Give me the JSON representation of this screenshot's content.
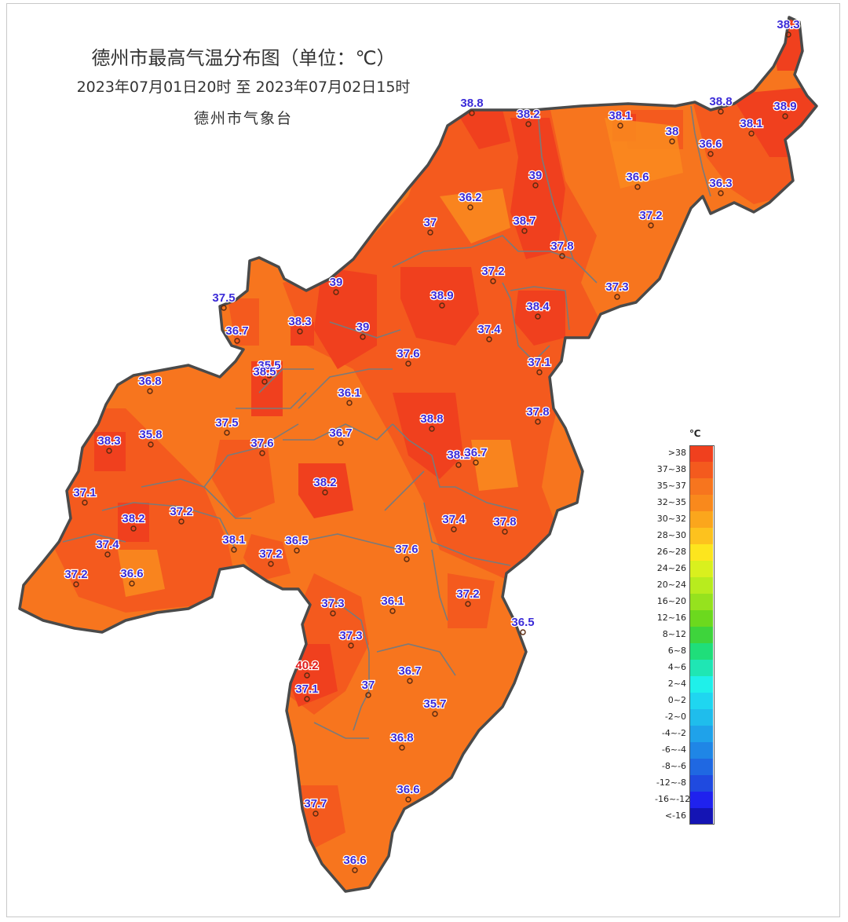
{
  "header": {
    "title": "德州市最高气温分布图（单位：℃）",
    "period": "2023年07月01日20时  至  2023年07月02日15时",
    "agency": "德州市气象台"
  },
  "colors": {
    "gt38": "#f0401e",
    "c37_38": "#f45a1e",
    "c35_37": "#f7751e",
    "border": "#4a4a4a",
    "county_line": "#7a7a7a",
    "station_label": "#3b2bd8",
    "station_label_hot": "#e01818"
  },
  "legend": {
    "unit": "℃",
    "items": [
      {
        "label": ">38",
        "color": "#f0401e"
      },
      {
        "label": "37~38",
        "color": "#f45a1e"
      },
      {
        "label": "35~37",
        "color": "#f7751e"
      },
      {
        "label": "32~35",
        "color": "#f9891c"
      },
      {
        "label": "30~32",
        "color": "#fba61c"
      },
      {
        "label": "28~30",
        "color": "#fdc21e"
      },
      {
        "label": "26~28",
        "color": "#fde51e"
      },
      {
        "label": "24~26",
        "color": "#d9f01e"
      },
      {
        "label": "20~24",
        "color": "#b8ec1e"
      },
      {
        "label": "16~20",
        "color": "#96e21e"
      },
      {
        "label": "12~16",
        "color": "#6cd91e"
      },
      {
        "label": "8~12",
        "color": "#3ed43c"
      },
      {
        "label": "6~8",
        "color": "#1fde7a"
      },
      {
        "label": "4~6",
        "color": "#1fe6b4"
      },
      {
        "label": "2~4",
        "color": "#1ff0ea"
      },
      {
        "label": "0~2",
        "color": "#1fd6f0"
      },
      {
        "label": "-2~0",
        "color": "#1fbdec"
      },
      {
        "label": "-4~-2",
        "color": "#1fa2ea"
      },
      {
        "label": "-6~-4",
        "color": "#1f86e6"
      },
      {
        "label": "-8~-6",
        "color": "#1f68e2"
      },
      {
        "label": "-12~-8",
        "color": "#1f4ae0"
      },
      {
        "label": "-16~-12",
        "color": "#1f22ee"
      },
      {
        "label": "<-16",
        "color": "#1414b4"
      }
    ]
  },
  "stations": [
    {
      "value": "38.3"
    },
    {
      "value": "38.8"
    },
    {
      "value": "38.2"
    },
    {
      "value": "38.1"
    },
    {
      "value": "38"
    },
    {
      "value": "38.8"
    },
    {
      "value": "38.9"
    },
    {
      "value": "38.1"
    },
    {
      "value": "36.6"
    },
    {
      "value": "39"
    },
    {
      "value": "36.6"
    },
    {
      "value": "36.3"
    },
    {
      "value": "36.2"
    },
    {
      "value": "37"
    },
    {
      "value": "38.7"
    },
    {
      "value": "37.2"
    },
    {
      "value": "37.8"
    },
    {
      "value": "39"
    },
    {
      "value": "37.2"
    },
    {
      "value": "38.9"
    },
    {
      "value": "37.3"
    },
    {
      "value": "38.4"
    },
    {
      "value": "37.5"
    },
    {
      "value": "38.3"
    },
    {
      "value": "36.7"
    },
    {
      "value": "39"
    },
    {
      "value": "37.4"
    },
    {
      "value": "37.6"
    },
    {
      "value": "37.1"
    },
    {
      "value": "35.5"
    },
    {
      "value": "38.5"
    },
    {
      "value": "36.8"
    },
    {
      "value": "36.1"
    },
    {
      "value": "38.8"
    },
    {
      "value": "37.8"
    },
    {
      "value": "38.3"
    },
    {
      "value": "35.8"
    },
    {
      "value": "37.5"
    },
    {
      "value": "37.6"
    },
    {
      "value": "36.7"
    },
    {
      "value": "38.1"
    },
    {
      "value": "36.7"
    },
    {
      "value": "37.1"
    },
    {
      "value": "38.2"
    },
    {
      "value": "38.2"
    },
    {
      "value": "37.2"
    },
    {
      "value": "37.4"
    },
    {
      "value": "37.8"
    },
    {
      "value": "37.4"
    },
    {
      "value": "38.1"
    },
    {
      "value": "36.5"
    },
    {
      "value": "37.6"
    },
    {
      "value": "37.2"
    },
    {
      "value": "37.2"
    },
    {
      "value": "36.6"
    },
    {
      "value": "37.2"
    },
    {
      "value": "37.3"
    },
    {
      "value": "36.1"
    },
    {
      "value": "36.5"
    },
    {
      "value": "37.3"
    },
    {
      "value": "40.2"
    },
    {
      "value": "36.7"
    },
    {
      "value": "37.1"
    },
    {
      "value": "37"
    },
    {
      "value": "35.7"
    },
    {
      "value": "36.8"
    },
    {
      "value": "36.6"
    },
    {
      "value": "37.7"
    },
    {
      "value": "36.6"
    }
  ]
}
